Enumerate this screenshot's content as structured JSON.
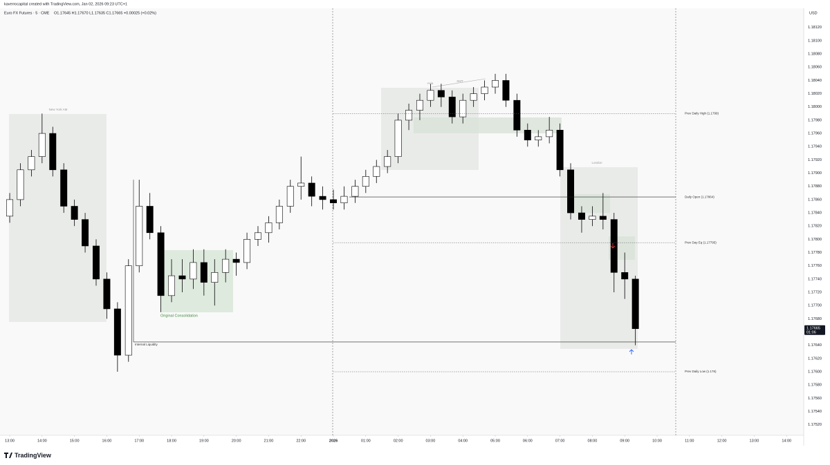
{
  "header": {
    "credit": "kaverrocapital created with TradingView.com, Jan 02, 2026 09:23 UTC+1",
    "symbol": "Euro FX Futures · 5 · CME",
    "ohlc": "O1.17645 H1.17670 L1.17635 C1.17665 +0.00025 (+0.02%)",
    "currency": "USD",
    "brand": "TradingView"
  },
  "chart_data": {
    "type": "candlestick",
    "x": [
      0,
      0.33,
      0.67,
      1,
      1.33,
      1.67,
      2,
      2.33,
      2.67,
      3,
      3.33,
      3.67,
      4,
      4.33,
      4.67,
      5,
      5.33,
      5.67,
      6,
      6.33,
      6.67,
      7,
      7.33,
      7.67,
      8,
      8.33,
      8.67,
      9,
      9.33,
      9.67,
      10,
      10.33,
      10.67,
      11,
      11.33,
      11.67,
      12,
      12.33,
      12.67,
      13,
      13.33,
      13.67,
      14,
      14.33,
      14.67,
      15,
      15.33,
      15.67,
      16,
      16.33,
      16.67,
      17,
      17.33,
      17.67,
      18,
      18.33,
      18.67,
      19,
      19.33
    ],
    "open": [
      1.17835,
      1.1786,
      1.17905,
      1.17925,
      1.1796,
      1.17905,
      1.1785,
      1.1783,
      1.1779,
      1.1774,
      1.17695,
      1.17625,
      1.1776,
      1.1785,
      1.1781,
      1.17715,
      1.17745,
      1.1774,
      1.17765,
      1.17735,
      1.1775,
      1.1777,
      1.17765,
      1.178,
      1.1781,
      1.17825,
      1.1785,
      1.1788,
      1.17885,
      1.17865,
      1.1786,
      1.17855,
      1.17865,
      1.1788,
      1.17895,
      1.1791,
      1.17925,
      1.1798,
      1.17995,
      1.1801,
      1.18025,
      1.18015,
      1.17985,
      1.1801,
      1.1802,
      1.1803,
      1.1804,
      1.1801,
      1.17965,
      1.1795,
      1.17955,
      1.17965,
      1.17905,
      1.1784,
      1.1783,
      1.17835,
      1.1783,
      1.1775,
      1.1774
    ],
    "high": [
      1.1787,
      1.17915,
      1.17935,
      1.1799,
      1.1797,
      1.17915,
      1.1786,
      1.1784,
      1.178,
      1.1775,
      1.17705,
      1.1777,
      1.1789,
      1.1787,
      1.1782,
      1.1777,
      1.1777,
      1.17785,
      1.17785,
      1.1777,
      1.17785,
      1.1778,
      1.1781,
      1.1782,
      1.17835,
      1.1786,
      1.1789,
      1.17925,
      1.17895,
      1.1788,
      1.17875,
      1.1788,
      1.1789,
      1.17905,
      1.1792,
      1.17935,
      1.1799,
      1.18005,
      1.1802,
      1.18035,
      1.18035,
      1.18025,
      1.1802,
      1.1803,
      1.1804,
      1.1805,
      1.1805,
      1.1802,
      1.17975,
      1.17965,
      1.17985,
      1.17975,
      1.17915,
      1.1785,
      1.1785,
      1.1787,
      1.1784,
      1.1778,
      1.17745
    ],
    "low": [
      1.17825,
      1.1785,
      1.17895,
      1.17915,
      1.17895,
      1.1784,
      1.1782,
      1.1778,
      1.1773,
      1.1768,
      1.176,
      1.17615,
      1.1775,
      1.178,
      1.1769,
      1.17705,
      1.1772,
      1.17725,
      1.17715,
      1.177,
      1.17735,
      1.17745,
      1.17755,
      1.1779,
      1.17795,
      1.17815,
      1.1784,
      1.1786,
      1.1785,
      1.17845,
      1.17845,
      1.17845,
      1.17855,
      1.1787,
      1.17885,
      1.179,
      1.17915,
      1.17965,
      1.1798,
      1.18,
      1.18,
      1.17975,
      1.17975,
      1.18,
      1.1801,
      1.1802,
      1.18,
      1.17955,
      1.1794,
      1.1794,
      1.17945,
      1.17895,
      1.1783,
      1.1781,
      1.1782,
      1.17815,
      1.1772,
      1.1771,
      1.1764
    ],
    "close": [
      1.1786,
      1.17905,
      1.17925,
      1.1796,
      1.17905,
      1.1785,
      1.1783,
      1.1779,
      1.1774,
      1.17695,
      1.17625,
      1.1776,
      1.1785,
      1.1781,
      1.17715,
      1.17745,
      1.1774,
      1.17765,
      1.17735,
      1.1775,
      1.1777,
      1.17765,
      1.178,
      1.1781,
      1.17825,
      1.1785,
      1.1788,
      1.17885,
      1.17865,
      1.1786,
      1.17855,
      1.17865,
      1.1788,
      1.17895,
      1.1791,
      1.17925,
      1.1798,
      1.17995,
      1.1801,
      1.18025,
      1.18015,
      1.17985,
      1.1801,
      1.1802,
      1.1803,
      1.1804,
      1.1801,
      1.17965,
      1.1795,
      1.17955,
      1.17965,
      1.17905,
      1.1784,
      1.1783,
      1.17835,
      1.1783,
      1.1775,
      1.1774,
      1.17665
    ],
    "up_color": "#ffffff",
    "down_color": "#000000",
    "outline_color": "#000000",
    "last_price_label": "1.17665",
    "countdown": "01:06",
    "xlim": [
      -0.3,
      24.53
    ],
    "ylim": [
      1.17504,
      1.18149
    ],
    "grid": false,
    "xticks": [
      {
        "value": 0,
        "label": "13:00"
      },
      {
        "value": 1,
        "label": "14:00"
      },
      {
        "value": 2,
        "label": "15:00"
      },
      {
        "value": 3,
        "label": "16:00"
      },
      {
        "value": 4,
        "label": "17:00"
      },
      {
        "value": 5,
        "label": "18:00"
      },
      {
        "value": 6,
        "label": "19:00"
      },
      {
        "value": 7,
        "label": "20:00"
      },
      {
        "value": 8,
        "label": "21:00"
      },
      {
        "value": 9,
        "label": "22:00"
      },
      {
        "value": 10,
        "label": "2026"
      },
      {
        "value": 11,
        "label": "01:00"
      },
      {
        "value": 12,
        "label": "02:00"
      },
      {
        "value": 13,
        "label": "03:00"
      },
      {
        "value": 14,
        "label": "04:00"
      },
      {
        "value": 15,
        "label": "05:00"
      },
      {
        "value": 16,
        "label": "06:00"
      },
      {
        "value": 17,
        "label": "07:00"
      },
      {
        "value": 18,
        "label": "08:00"
      },
      {
        "value": 19,
        "label": "09:00"
      },
      {
        "value": 20,
        "label": "10:00"
      },
      {
        "value": 21,
        "label": "11:00"
      },
      {
        "value": 22,
        "label": "12:00"
      },
      {
        "value": 23,
        "label": "13:00"
      },
      {
        "value": 24,
        "label": "14:00"
      }
    ],
    "yticks": [
      {
        "value": 1.1812,
        "label": "1.18120"
      },
      {
        "value": 1.181,
        "label": "1.18100"
      },
      {
        "value": 1.1808,
        "label": "1.18080"
      },
      {
        "value": 1.1806,
        "label": "1.18060"
      },
      {
        "value": 1.1804,
        "label": "1.18040"
      },
      {
        "value": 1.1802,
        "label": "1.18020"
      },
      {
        "value": 1.18,
        "label": "1.18000"
      },
      {
        "value": 1.1798,
        "label": "1.17980"
      },
      {
        "value": 1.1796,
        "label": "1.17960"
      },
      {
        "value": 1.1794,
        "label": "1.17940"
      },
      {
        "value": 1.1792,
        "label": "1.17920"
      },
      {
        "value": 1.179,
        "label": "1.17900"
      },
      {
        "value": 1.1788,
        "label": "1.17880"
      },
      {
        "value": 1.1786,
        "label": "1.17860"
      },
      {
        "value": 1.1784,
        "label": "1.17840"
      },
      {
        "value": 1.1782,
        "label": "1.17820"
      },
      {
        "value": 1.178,
        "label": "1.17800"
      },
      {
        "value": 1.1778,
        "label": "1.17780"
      },
      {
        "value": 1.1776,
        "label": "1.17760"
      },
      {
        "value": 1.1774,
        "label": "1.17740"
      },
      {
        "value": 1.1772,
        "label": "1.17720"
      },
      {
        "value": 1.177,
        "label": "1.17700"
      },
      {
        "value": 1.1768,
        "label": "1.17680"
      },
      {
        "value": 1.1764,
        "label": "1.17640"
      },
      {
        "value": 1.1762,
        "label": "1.17620"
      },
      {
        "value": 1.176,
        "label": "1.17600"
      },
      {
        "value": 1.1758,
        "label": "1.17580"
      },
      {
        "value": 1.1756,
        "label": "1.17560"
      },
      {
        "value": 1.1754,
        "label": "1.17540"
      },
      {
        "value": 1.1752,
        "label": "1.17520"
      }
    ],
    "levels": [
      {
        "label": "Prev Daily High (1.1799)",
        "value": 1.1799,
        "style": "dotted"
      },
      {
        "label": "Daily Open (1.17864)",
        "value": 1.17864,
        "style": "solid"
      },
      {
        "label": "Prev Day Eq (1.17795)",
        "value": 1.17795,
        "style": "dotted"
      },
      {
        "label": "Prev Daily Low (1.176)",
        "value": 1.176,
        "style": "dotted"
      },
      {
        "label": "Internal Liquidity",
        "value": 1.17645,
        "style": "solid"
      }
    ],
    "annotations": [
      "New York AM",
      "Asia",
      "SMT",
      "London",
      "Original Consolidation"
    ]
  }
}
